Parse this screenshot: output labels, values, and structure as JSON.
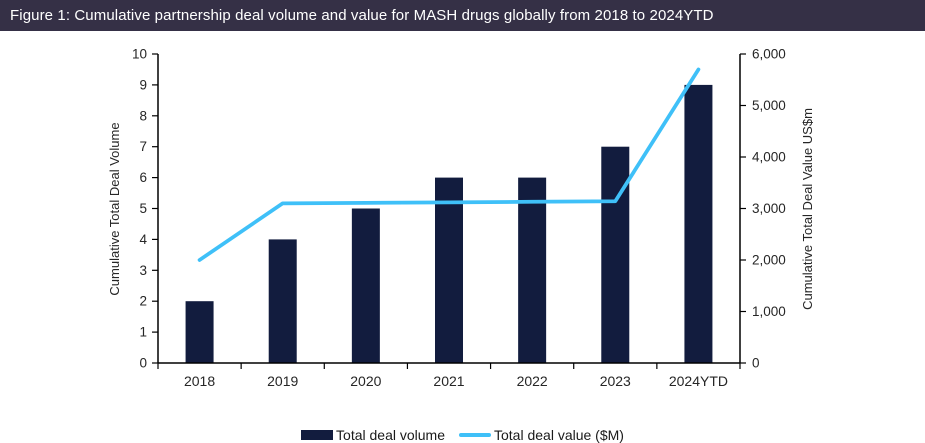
{
  "header": {
    "title": "Figure 1: Cumulative partnership deal volume and value for MASH drugs globally from 2018 to 2024YTD"
  },
  "colors": {
    "header_bg": "#353046",
    "bar": "#121c3e",
    "line": "#3fc0f8",
    "axis": "#000000",
    "text": "#262626"
  },
  "chart_data": {
    "type": "combo",
    "title": "Figure 1: Cumulative partnership deal volume and value for MASH drugs globally from 2018 to 2024YTD",
    "categories": [
      "2018",
      "2019",
      "2020",
      "2021",
      "2022",
      "2023",
      "2024YTD"
    ],
    "series": [
      {
        "name": "Total deal volume",
        "type": "bar",
        "axis": "left",
        "color": "#121c3e",
        "values": [
          2,
          4,
          5,
          6,
          6,
          7,
          9
        ]
      },
      {
        "name": "Total deal value ($M)",
        "type": "line",
        "axis": "right",
        "color": "#3fc0f8",
        "values": [
          2000,
          3100,
          3110,
          3120,
          3130,
          3140,
          5700
        ]
      }
    ],
    "left_axis": {
      "label": "Cumulative Total Deal Volume",
      "min": 0,
      "max": 10,
      "step": 1
    },
    "right_axis": {
      "label": "Cumulative Total Deal Value US$m",
      "min": 0,
      "max": 6000,
      "step": 1000,
      "tick_format": "comma"
    },
    "grid": "off",
    "legend_position": "bottom"
  }
}
